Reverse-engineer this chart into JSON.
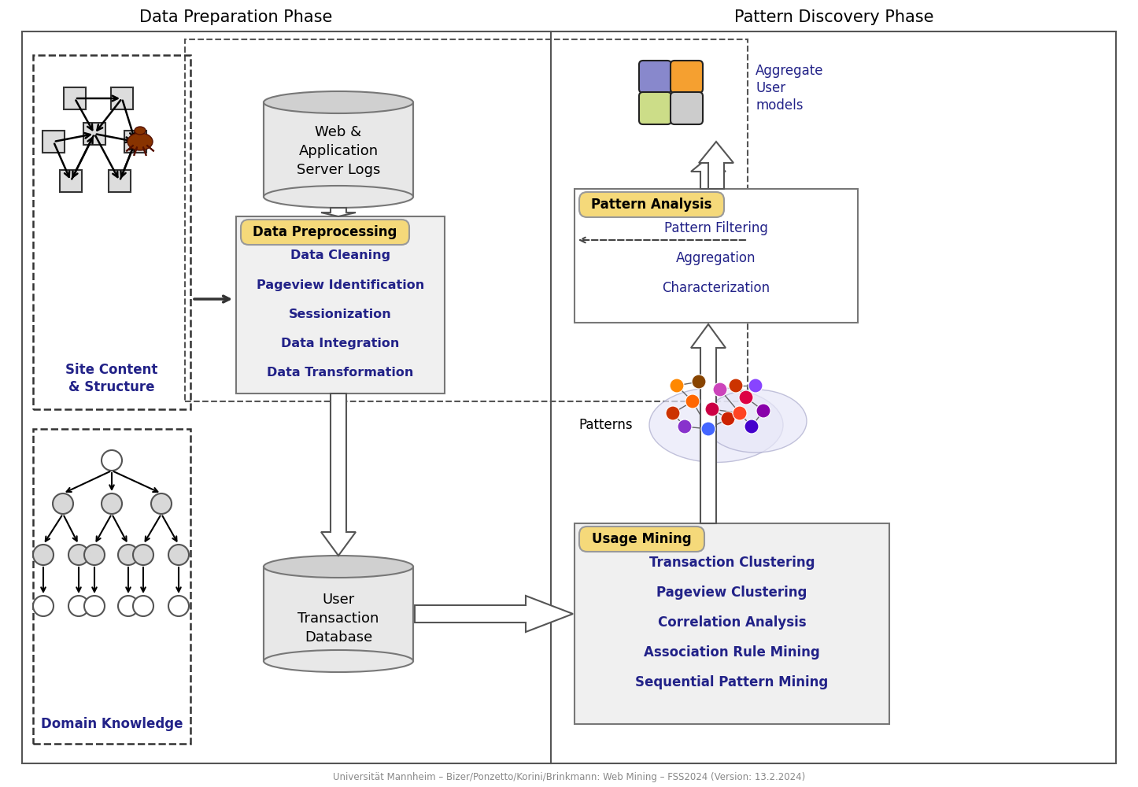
{
  "title_left": "Data Preparation Phase",
  "title_right": "Pattern Discovery Phase",
  "footer": "Universität Mannheim – Bizer/Ponzetto/Korini/Brinkmann: Web Mining – FSS2024 (Version: 13.2.2024)",
  "bg_color": "#ffffff",
  "yellow_fill": "#f5d97a",
  "light_gray_fill": "#e8e8e8",
  "data_preprocessing_title": "Data Preprocessing",
  "data_preprocessing_items": [
    "Data Cleaning",
    "Pageview Identification",
    "Sessionization",
    "Data Integration",
    "Data Transformation"
  ],
  "usage_mining_title": "Usage Mining",
  "usage_mining_items": [
    "Transaction Clustering",
    "Pageview Clustering",
    "Correlation Analysis",
    "Association Rule Mining",
    "Sequential Pattern Mining"
  ],
  "pattern_analysis_title": "Pattern Analysis",
  "pattern_analysis_items": [
    "Pattern Filtering",
    "Aggregation",
    "Characterization"
  ],
  "web_server_label": [
    "Web &",
    "Application",
    "Server Logs"
  ],
  "user_transaction_label": [
    "User",
    "Transaction",
    "Database"
  ],
  "site_content_label": [
    "Site Content",
    "& Structure"
  ],
  "domain_knowledge_label": "Domain Knowledge",
  "aggregate_label": [
    "Aggregate",
    "User",
    "models"
  ],
  "patterns_label": "Patterns"
}
